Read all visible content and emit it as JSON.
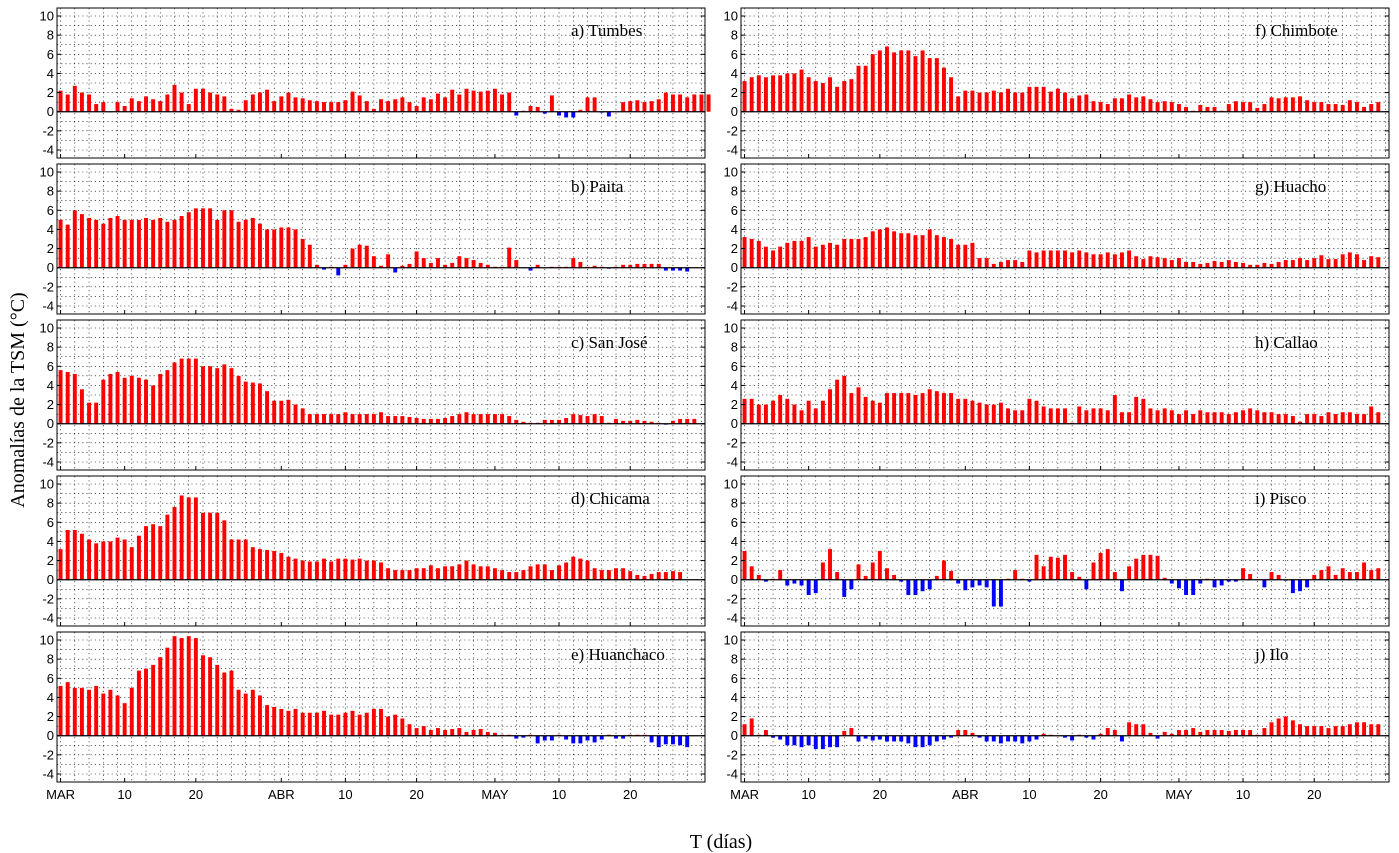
{
  "figure": {
    "ylabel": "Anomalías de la TSM (°C)",
    "xlabel": "T (días)",
    "colors": {
      "positive": "#ff0000",
      "negative": "#0000ff",
      "grid": "#000000",
      "frame": "#000000"
    }
  },
  "chart_data": [
    {
      "type": "bar",
      "title": "a) Tumbes",
      "ylim": [
        -4,
        10
      ],
      "grid": true,
      "x_tick_labels": [
        "MAR",
        "10",
        "20",
        "ABR",
        "10",
        "20",
        "MAY",
        "10",
        "20"
      ],
      "y_tick_labels": [
        "10",
        "8",
        "6",
        "4",
        "2",
        "0",
        "-2",
        "-4"
      ],
      "values": [
        2.2,
        1.8,
        2.7,
        2,
        1.8,
        0.8,
        1,
        0,
        1,
        0.6,
        1.4,
        1.1,
        1.6,
        1.3,
        1.1,
        1.8,
        2.8,
        2,
        0.8,
        2.4,
        2.4,
        2,
        1.8,
        1.6,
        0.3,
        0.2,
        1.2,
        1.8,
        2,
        2.3,
        1.1,
        1.6,
        2,
        1.5,
        1.4,
        1.2,
        1.1,
        1,
        1,
        1,
        1.2,
        2.1,
        1.7,
        1.1,
        0.3,
        1.3,
        1.1,
        1.3,
        1.5,
        1,
        0.6,
        1.5,
        1.3,
        1.9,
        1.5,
        2.3,
        1.8,
        2.4,
        2.2,
        2.1,
        2.2,
        2.4,
        1.8,
        2,
        -0.4,
        0.1,
        0.6,
        0.5,
        -0.2,
        1.7,
        -0.4,
        -0.6,
        -0.6,
        0.2,
        1.5,
        1.5,
        -0.1,
        -0.5,
        0,
        1,
        1.1,
        1.2,
        1,
        1.1,
        1.3,
        2,
        1.8,
        1.8,
        1.5,
        1.8,
        1.8,
        1.8
      ]
    },
    {
      "type": "bar",
      "title": "b) Paita",
      "ylim": [
        -4,
        10
      ],
      "grid": true,
      "x_tick_labels": [
        "MAR",
        "10",
        "20",
        "ABR",
        "10",
        "20",
        "MAY",
        "10",
        "20"
      ],
      "y_tick_labels": [
        "10",
        "8",
        "6",
        "4",
        "2",
        "0",
        "-2",
        "-4"
      ],
      "values": [
        5,
        4.5,
        6,
        5.6,
        5.2,
        5,
        4.6,
        5.2,
        5.4,
        5,
        5,
        5,
        5.2,
        5,
        5.2,
        4.8,
        5,
        5.4,
        5.8,
        6.2,
        6.2,
        6.2,
        5,
        6,
        6,
        4.8,
        5,
        5.2,
        4.6,
        4,
        4,
        4.2,
        4.2,
        4,
        3,
        2.4,
        0.3,
        -0.2,
        0.1,
        -0.8,
        0.3,
        2,
        2.4,
        2.3,
        1.2,
        0.2,
        1.4,
        -0.5,
        0.2,
        0.4,
        1.7,
        1,
        0.5,
        1,
        0.3,
        0.5,
        1.2,
        1,
        0.8,
        0.5,
        0.3,
        0.1,
        0.1,
        2.1,
        0.8,
        0,
        -0.3,
        0.3,
        0,
        0.1,
        0.1,
        0.1,
        1,
        0.6,
        0.1,
        0.2,
        0.1,
        -0.1,
        0.1,
        0.3,
        0.3,
        0.4,
        0.4,
        0.4,
        0.4,
        -0.3,
        -0.3,
        -0.3,
        -0.4
      ]
    },
    {
      "type": "bar",
      "title": "c) San José",
      "ylim": [
        -4,
        10
      ],
      "grid": true,
      "x_tick_labels": [
        "MAR",
        "10",
        "20",
        "ABR",
        "10",
        "20",
        "MAY",
        "10",
        "20"
      ],
      "y_tick_labels": [
        "10",
        "8",
        "6",
        "4",
        "2",
        "0",
        "-2",
        "-4"
      ],
      "values": [
        5.6,
        5.4,
        5.2,
        3.6,
        2.2,
        2.2,
        4.6,
        5.2,
        5.4,
        4.8,
        5,
        4.8,
        4.6,
        4,
        5.2,
        5.6,
        6.4,
        6.8,
        6.8,
        6.8,
        6,
        6,
        5.8,
        6.2,
        5.8,
        5,
        4.4,
        4.3,
        4.2,
        3.4,
        2.4,
        2.4,
        2.5,
        2,
        1.6,
        1,
        1,
        1,
        1,
        1,
        1.2,
        1,
        1,
        1,
        1,
        1.2,
        0.8,
        0.8,
        0.8,
        0.7,
        0.6,
        0.5,
        0.5,
        0.5,
        0.6,
        0.8,
        1,
        1.2,
        1,
        1,
        1,
        1,
        1,
        0.8,
        0.4,
        0.2,
        0.1,
        0.1,
        0.4,
        0.4,
        0.4,
        0.6,
        1,
        0.9,
        0.8,
        1,
        0.8,
        0.1,
        0.5,
        0.3,
        0.3,
        0.4,
        0.3,
        0.2,
        0.1,
        -0.1,
        0.3,
        0.5,
        0.5,
        0.5
      ]
    },
    {
      "type": "bar",
      "title": "d) Chicama",
      "ylim": [
        -4,
        10
      ],
      "grid": true,
      "x_tick_labels": [
        "MAR",
        "10",
        "20",
        "ABR",
        "10",
        "20",
        "MAY",
        "10",
        "20"
      ],
      "y_tick_labels": [
        "10",
        "8",
        "6",
        "4",
        "2",
        "0",
        "-2",
        "-4"
      ],
      "values": [
        3.2,
        5.2,
        5.2,
        4.8,
        4.2,
        3.8,
        4,
        4,
        4.4,
        4.2,
        3.4,
        4.6,
        5.6,
        5.8,
        5.6,
        6.8,
        7.6,
        8.8,
        8.6,
        8.6,
        7,
        7,
        7,
        6.2,
        4.2,
        4.2,
        4.2,
        3.4,
        3.2,
        3.1,
        3,
        2.8,
        2.4,
        2.2,
        2,
        1.9,
        1.9,
        2.2,
        1.9,
        2.2,
        2.2,
        2.1,
        2.2,
        2,
        2,
        1.8,
        1.2,
        1,
        1,
        1,
        1.2,
        1.2,
        1.5,
        1.2,
        1.4,
        1.4,
        1.6,
        2,
        1.6,
        1.4,
        1.4,
        1.2,
        1,
        0.8,
        0.8,
        1,
        1.4,
        1.6,
        1.6,
        1,
        1.5,
        1.8,
        2.4,
        2.2,
        2,
        1.2,
        1,
        1,
        1.2,
        1.2,
        0.9,
        0.5,
        0.4,
        0.6,
        0.8,
        0.8,
        0.9,
        0.8
      ]
    },
    {
      "type": "bar",
      "title": "e) Huanchaco",
      "ylim": [
        -4,
        10
      ],
      "grid": true,
      "x_tick_labels": [
        "MAR",
        "10",
        "20",
        "ABR",
        "10",
        "20",
        "MAY",
        "10",
        "20"
      ],
      "y_tick_labels": [
        "10",
        "8",
        "6",
        "4",
        "2",
        "0",
        "-2",
        "-4"
      ],
      "values": [
        5.2,
        5.6,
        5,
        5,
        4.8,
        5.2,
        4.4,
        4.8,
        4.2,
        3.4,
        5,
        6.8,
        7,
        7.4,
        8.2,
        9.2,
        10.4,
        10.2,
        10.4,
        10.2,
        8.4,
        8.2,
        7.4,
        6.6,
        6.8,
        4.8,
        4.4,
        4.8,
        4.2,
        3.2,
        3,
        2.8,
        2.6,
        2.8,
        2.4,
        2.4,
        2.4,
        2.6,
        2.2,
        2.2,
        2.4,
        2.6,
        2.2,
        2.4,
        2.8,
        2.8,
        2,
        2.2,
        1.8,
        1.2,
        0.8,
        1,
        0.6,
        0.8,
        0.6,
        0.7,
        0.8,
        0.4,
        0.6,
        0.7,
        0.4,
        0.3,
        0.1,
        0.1,
        -0.3,
        -0.2,
        0.1,
        -0.8,
        -0.5,
        -0.5,
        0.1,
        -0.4,
        -0.8,
        -0.8,
        -0.5,
        -0.7,
        -0.4,
        0.1,
        -0.3,
        -0.3,
        0.1,
        0.1,
        0.1,
        -0.7,
        -1.2,
        -0.9,
        -0.9,
        -1,
        -1.2
      ]
    },
    {
      "type": "bar",
      "title": "f) Chimbote",
      "ylim": [
        -4,
        10
      ],
      "grid": true,
      "x_tick_labels": [
        "MAR",
        "10",
        "20",
        "ABR",
        "10",
        "20",
        "MAY",
        "10",
        "20"
      ],
      "y_tick_labels": [
        "10",
        "8",
        "6",
        "4",
        "2",
        "0",
        "-2",
        "-4"
      ],
      "values": [
        3.2,
        3.6,
        3.8,
        3.6,
        3.8,
        3.8,
        4,
        4,
        4.4,
        3.6,
        3.2,
        3,
        3.6,
        2.6,
        3.2,
        3.4,
        4.8,
        4.8,
        6,
        6.4,
        6.8,
        6.2,
        6.4,
        6.4,
        5.8,
        6.4,
        5.6,
        5.6,
        4.6,
        3.6,
        1.6,
        2.2,
        2.2,
        2,
        2,
        2.2,
        2,
        2.4,
        2,
        2,
        2.6,
        2.6,
        2.6,
        2.1,
        2.4,
        2,
        1.4,
        1.7,
        1.8,
        1.1,
        1,
        0.8,
        1.4,
        1.4,
        1.8,
        1.5,
        1.6,
        1.3,
        1,
        1.1,
        1,
        0.8,
        0.5,
        0.1,
        0.7,
        0.5,
        0.5,
        0.1,
        0.8,
        1.1,
        1,
        1,
        0.4,
        0.8,
        1.5,
        1.4,
        1.5,
        1.5,
        1.6,
        1.2,
        1,
        1,
        0.8,
        0.8,
        0.7,
        1.2,
        1,
        0.5,
        0.8,
        1
      ]
    },
    {
      "type": "bar",
      "title": "g) Huacho",
      "ylim": [
        -4,
        10
      ],
      "grid": true,
      "x_tick_labels": [
        "MAR",
        "10",
        "20",
        "ABR",
        "10",
        "20",
        "MAY",
        "10",
        "20"
      ],
      "y_tick_labels": [
        "10",
        "8",
        "6",
        "4",
        "2",
        "0",
        "-2",
        "-4"
      ],
      "values": [
        3.2,
        3,
        2.8,
        2.2,
        1.8,
        2.2,
        2.6,
        2.8,
        2.8,
        3.2,
        2.2,
        2.4,
        2.6,
        2.4,
        3,
        3,
        3,
        3.2,
        3.8,
        4,
        4.2,
        3.8,
        3.6,
        3.6,
        3.4,
        3.4,
        4,
        3.4,
        3.2,
        3,
        2.4,
        2.4,
        2.6,
        1,
        1,
        0.4,
        0.6,
        0.8,
        0.8,
        0.6,
        1.8,
        1.6,
        1.8,
        1.8,
        1.8,
        1.8,
        1.6,
        1.8,
        1.6,
        1.4,
        1.4,
        1.6,
        1.4,
        1.6,
        1.8,
        1.2,
        0.9,
        1.2,
        1.1,
        1,
        0.8,
        1,
        0.6,
        0.6,
        0.4,
        0.5,
        0.7,
        0.6,
        0.8,
        0.6,
        0.5,
        0.3,
        0.3,
        0.5,
        0.4,
        0.6,
        0.8,
        0.8,
        1,
        0.8,
        1,
        1.3,
        0.9,
        0.9,
        1.4,
        1.6,
        1.4,
        0.8,
        1.2,
        1.1
      ]
    },
    {
      "type": "bar",
      "title": "h) Callao",
      "ylim": [
        -4,
        10
      ],
      "grid": true,
      "x_tick_labels": [
        "MAR",
        "10",
        "20",
        "ABR",
        "10",
        "20",
        "MAY",
        "10",
        "20"
      ],
      "y_tick_labels": [
        "10",
        "8",
        "6",
        "4",
        "2",
        "0",
        "-2",
        "-4"
      ],
      "values": [
        2.6,
        2.6,
        2,
        2,
        2.4,
        3,
        2.6,
        2,
        1.4,
        2.4,
        1.6,
        2.4,
        3.6,
        4.6,
        5,
        3.2,
        3.8,
        2.8,
        2.4,
        2.2,
        3.2,
        3.2,
        3.2,
        3.2,
        3,
        3.2,
        3.6,
        3.4,
        3.2,
        3.2,
        2.6,
        2.6,
        2.4,
        2.2,
        2,
        2,
        2.2,
        1.6,
        1.4,
        1.4,
        2.6,
        2.4,
        1.8,
        1.6,
        1.6,
        1.6,
        0.1,
        1.8,
        1.4,
        1.6,
        1.6,
        1.4,
        3,
        1.2,
        1.2,
        2.8,
        2.6,
        1.6,
        1.4,
        1.6,
        1.4,
        1,
        1.4,
        1,
        1.4,
        1.2,
        1.2,
        1.2,
        1,
        1.2,
        1.4,
        1.6,
        1.4,
        1.2,
        1.2,
        1,
        1,
        0.8,
        0.2,
        1,
        1,
        0.8,
        1.2,
        1,
        1.2,
        1.2,
        1,
        1,
        1.8,
        1.2
      ]
    },
    {
      "type": "bar",
      "title": "i) Pisco",
      "ylim": [
        -4,
        10
      ],
      "grid": true,
      "x_tick_labels": [
        "MAR",
        "10",
        "20",
        "ABR",
        "10",
        "20",
        "MAY",
        "10",
        "20"
      ],
      "y_tick_labels": [
        "10",
        "8",
        "6",
        "4",
        "2",
        "0",
        "-2",
        "-4"
      ],
      "values": [
        3,
        1.4,
        0.5,
        -0.2,
        0.1,
        1,
        -0.6,
        -0.4,
        -0.6,
        -1.6,
        -1.4,
        1.8,
        3.2,
        0.8,
        -1.8,
        -1,
        1.6,
        0.4,
        1.8,
        3,
        1.2,
        0.5,
        -0.2,
        -1.6,
        -1.6,
        -1.2,
        -1,
        0.4,
        2,
        0.9,
        -0.4,
        -1.1,
        -0.8,
        -0.6,
        -0.8,
        -2.8,
        -2.8,
        0.1,
        1,
        0.1,
        -0.2,
        2.6,
        1.4,
        2.4,
        2.3,
        2.6,
        0.8,
        0.3,
        -1,
        1.8,
        2.8,
        3.2,
        0.8,
        -1.2,
        1.4,
        2.2,
        2.6,
        2.6,
        2.5,
        0.2,
        -0.4,
        -0.9,
        -1.6,
        -1.6,
        -0.4,
        0.1,
        -0.8,
        -0.6,
        -0.2,
        -0.2,
        1.2,
        0.6,
        0,
        -0.8,
        0.8,
        0.5,
        -0.1,
        -1.4,
        -1.2,
        -0.8,
        0.5,
        1,
        1.4,
        0.5,
        1.2,
        0.8,
        0.8,
        1.8,
        1,
        1.2
      ]
    },
    {
      "type": "bar",
      "title": "j) Ilo",
      "ylim": [
        -4,
        10
      ],
      "grid": true,
      "x_tick_labels": [
        "MAR",
        "10",
        "20",
        "ABR",
        "10",
        "20",
        "MAY",
        "10",
        "20"
      ],
      "y_tick_labels": [
        "10",
        "8",
        "6",
        "4",
        "2",
        "0",
        "-2",
        "-4"
      ],
      "values": [
        1.2,
        1.8,
        0.1,
        0.6,
        -0.2,
        -0.4,
        -1,
        -1,
        -1.2,
        -1,
        -1.4,
        -1.4,
        -1.2,
        -1.2,
        0.5,
        0.8,
        -0.6,
        -0.3,
        -0.5,
        -0.4,
        -0.6,
        -0.6,
        -0.6,
        -0.8,
        -1.2,
        -1.2,
        -1,
        -0.6,
        -0.4,
        -0.2,
        0.6,
        0.6,
        0.3,
        -0.2,
        -0.6,
        -0.6,
        -0.8,
        -0.6,
        -0.6,
        -0.8,
        -0.6,
        -0.4,
        0.2,
        0.1,
        0,
        -0.2,
        -0.5,
        0.1,
        -0.2,
        -0.4,
        0.2,
        0.8,
        0.6,
        -0.6,
        1.4,
        1.2,
        1.2,
        0.3,
        -0.3,
        0.4,
        0.2,
        0.6,
        0.6,
        0.8,
        0.4,
        0.6,
        0.6,
        0.6,
        0.5,
        0.6,
        0.6,
        0.6,
        0.1,
        0.8,
        1.4,
        1.8,
        2,
        1.6,
        1.2,
        1,
        1,
        1,
        0.8,
        1,
        1,
        1.2,
        1.4,
        1.4,
        1.2,
        1.2
      ]
    }
  ]
}
